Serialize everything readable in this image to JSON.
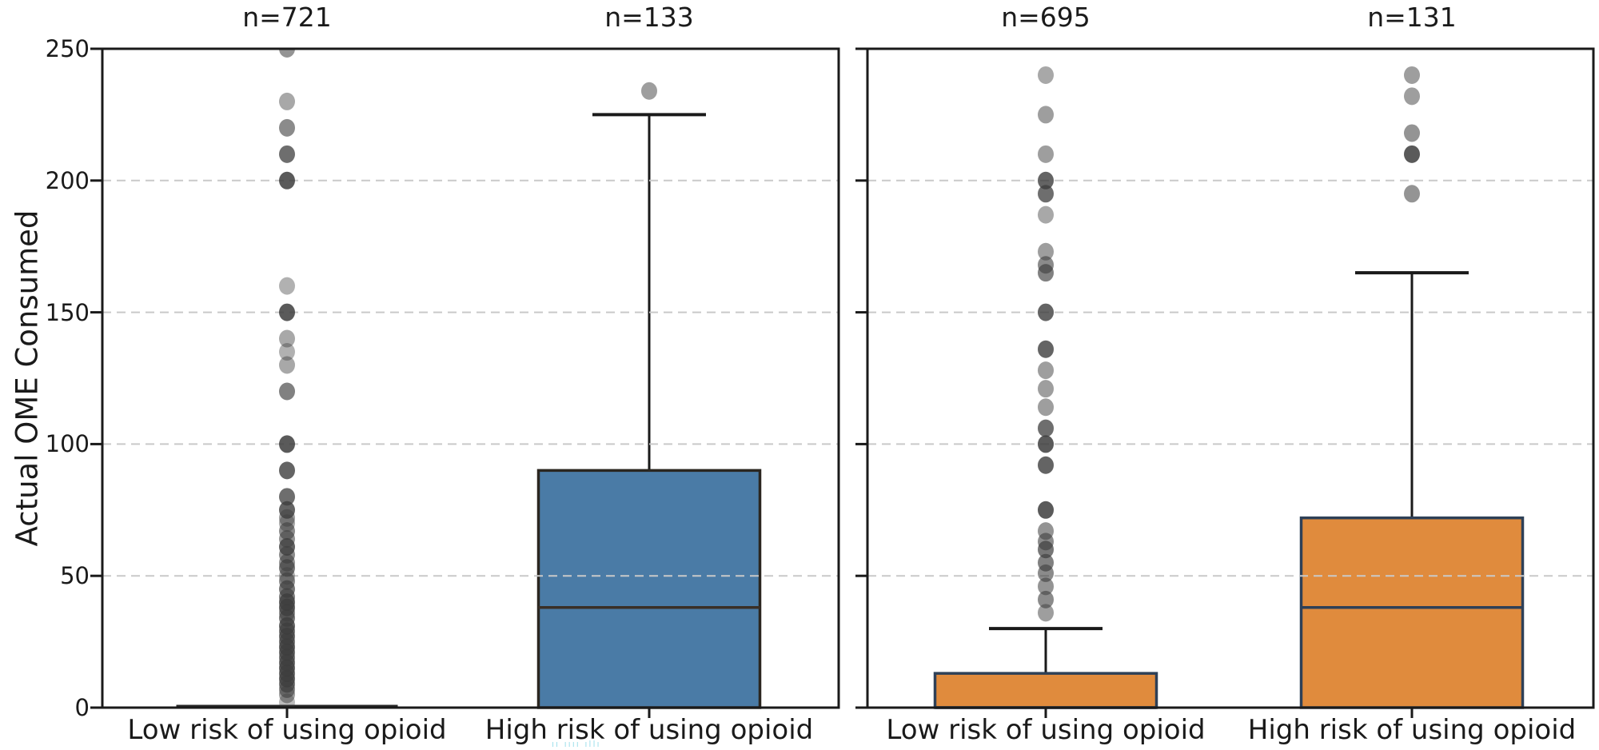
{
  "figure": {
    "ylabel": "Actual OME Consumed",
    "watermark": "ıı ıııı ıllı"
  },
  "colors": {
    "box_blue": "#4A7BA6",
    "box_orange": "#E08B3D",
    "blue_edge": "#2b2620",
    "orange_edge": "#2e4057",
    "median_blue": "#3a2f26",
    "median_orange": "#2e4057",
    "outlier_dot": "#3d3d3d",
    "gridline": "#c9c9c9",
    "axis": "#1a1a1a",
    "watermark_cyan": "#8fdbe8"
  },
  "chart_data": {
    "type": "box",
    "ylabel": "Actual OME Consumed",
    "ylim": [
      0,
      250
    ],
    "yticks": [
      0,
      50,
      100,
      150,
      200,
      250
    ],
    "grid": "horizontal dashed lines at 50, 100, 150, 200",
    "legend": "none",
    "panels": [
      {
        "name": "left",
        "categories": [
          "Low risk of using opioid",
          "High risk of using opioid"
        ],
        "counts": [
          "n=721",
          "n=133"
        ],
        "boxes": [
          {
            "category": "Low risk of using opioid",
            "n": 721,
            "fill": "none",
            "degenerate": true,
            "whisker_low": 0,
            "q1": 0,
            "median": 0,
            "q3": 0,
            "whisker_high": 0,
            "outliers": [
              [
                250,
                0.55
              ],
              [
                230,
                0.45
              ],
              [
                220,
                0.6
              ],
              [
                210,
                0.75
              ],
              [
                200,
                0.85
              ],
              [
                160,
                0.4
              ],
              [
                150,
                0.85
              ],
              [
                140,
                0.45
              ],
              [
                135,
                0.4
              ],
              [
                130,
                0.45
              ],
              [
                120,
                0.65
              ],
              [
                100,
                0.85
              ],
              [
                90,
                0.8
              ],
              [
                80,
                0.75
              ],
              [
                75,
                0.8
              ],
              [
                72,
                0.5
              ],
              [
                70,
                0.45
              ],
              [
                67,
                0.6
              ],
              [
                64,
                0.55
              ],
              [
                61,
                0.8
              ],
              [
                58,
                0.6
              ],
              [
                55,
                0.55
              ],
              [
                53,
                0.7
              ],
              [
                50,
                0.4
              ],
              [
                48,
                0.6
              ],
              [
                45,
                0.7
              ],
              [
                42,
                0.65
              ],
              [
                40,
                0.8
              ],
              [
                38,
                0.8
              ],
              [
                36,
                0.6
              ],
              [
                34,
                0.7
              ],
              [
                31,
                0.8
              ],
              [
                29,
                0.7
              ],
              [
                27,
                0.75
              ],
              [
                25,
                0.7
              ],
              [
                23,
                0.8
              ],
              [
                21,
                0.75
              ],
              [
                19,
                0.7
              ],
              [
                17,
                0.75
              ],
              [
                15,
                0.8
              ],
              [
                13,
                0.75
              ],
              [
                11,
                0.8
              ],
              [
                9,
                0.7
              ],
              [
                7,
                0.6
              ],
              [
                5,
                0.5
              ],
              [
                2,
                0.35
              ]
            ]
          },
          {
            "category": "High risk of using opioid",
            "n": 133,
            "fill": "#4A7BA6",
            "degenerate": false,
            "whisker_low": 0,
            "q1": 0,
            "median": 38,
            "q3": 90,
            "whisker_high": 225,
            "outliers": [
              [
                234,
                0.5
              ]
            ]
          }
        ]
      },
      {
        "name": "right",
        "categories": [
          "Low risk of using opioid",
          "High risk of using opioid"
        ],
        "counts": [
          "n=695",
          "n=131"
        ],
        "boxes": [
          {
            "category": "Low risk of using opioid",
            "n": 695,
            "fill": "#E08B3D",
            "degenerate": false,
            "whisker_low": 0,
            "q1": 0,
            "median": 0,
            "q3": 13,
            "whisker_high": 30,
            "outliers": [
              [
                240,
                0.45
              ],
              [
                225,
                0.5
              ],
              [
                210,
                0.5
              ],
              [
                200,
                0.8
              ],
              [
                195,
                0.75
              ],
              [
                187,
                0.45
              ],
              [
                173,
                0.5
              ],
              [
                168,
                0.6
              ],
              [
                165,
                0.65
              ],
              [
                150,
                0.8
              ],
              [
                136,
                0.8
              ],
              [
                128,
                0.5
              ],
              [
                121,
                0.5
              ],
              [
                114,
                0.5
              ],
              [
                106,
                0.75
              ],
              [
                100,
                0.85
              ],
              [
                92,
                0.8
              ],
              [
                75,
                0.85
              ],
              [
                67,
                0.55
              ],
              [
                63,
                0.6
              ],
              [
                60,
                0.7
              ],
              [
                55,
                0.65
              ],
              [
                51,
                0.6
              ],
              [
                46,
                0.55
              ],
              [
                41,
                0.6
              ],
              [
                36,
                0.5
              ]
            ]
          },
          {
            "category": "High risk of using opioid",
            "n": 131,
            "fill": "#E08B3D",
            "degenerate": false,
            "whisker_low": 0,
            "q1": 0,
            "median": 38,
            "q3": 72,
            "whisker_high": 165,
            "outliers": [
              [
                240,
                0.5
              ],
              [
                232,
                0.5
              ],
              [
                218,
                0.55
              ],
              [
                210,
                0.85
              ],
              [
                195,
                0.55
              ]
            ]
          }
        ]
      }
    ]
  }
}
